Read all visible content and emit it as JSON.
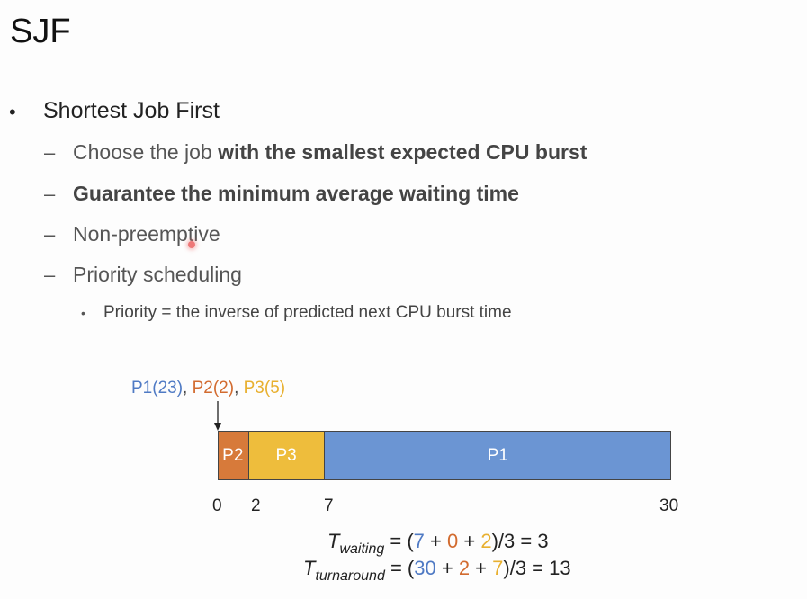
{
  "title": "SJF",
  "bullets": {
    "main": "Shortest Job First",
    "sub1_prefix": "Choose the job ",
    "sub1_bold": "with the smallest expected CPU burst",
    "sub2_bold": "Guarantee the minimum average waiting time",
    "sub3": "Non-preemptive",
    "sub4": "Priority scheduling",
    "sub4_child": "Priority = the inverse of predicted next CPU burst time"
  },
  "legend": {
    "p1": "P1(23)",
    "sep1": ", ",
    "p2": "P2(2)",
    "sep2": ", ",
    "p3": "P3(5)"
  },
  "gantt": {
    "segments": [
      {
        "label": "P2",
        "start": 0,
        "end": 2,
        "color": "#d77a3a"
      },
      {
        "label": "P3",
        "start": 2,
        "end": 7,
        "color": "#eebd3c"
      },
      {
        "label": "P1",
        "start": 7,
        "end": 30,
        "color": "#6b95d3"
      }
    ],
    "ticks": [
      "0",
      "2",
      "7",
      "30"
    ]
  },
  "formulas": {
    "waiting": {
      "T": "T",
      "sub": "waiting",
      "eq_open": " = (",
      "v1": "7",
      "plus1": " + ",
      "v2": "0",
      "plus2": " + ",
      "v3": "2",
      "tail": ")/3 = 3"
    },
    "turnaround": {
      "T": "T",
      "sub": "turnaround",
      "eq_open": " = (",
      "v1": "30",
      "plus1": " + ",
      "v2": "2",
      "plus2": " + ",
      "v3": "7",
      "tail": ")/3 = 13"
    }
  },
  "colors": {
    "p1": "#4f7ac4",
    "p2": "#d26b2f",
    "p3": "#e8b030"
  }
}
